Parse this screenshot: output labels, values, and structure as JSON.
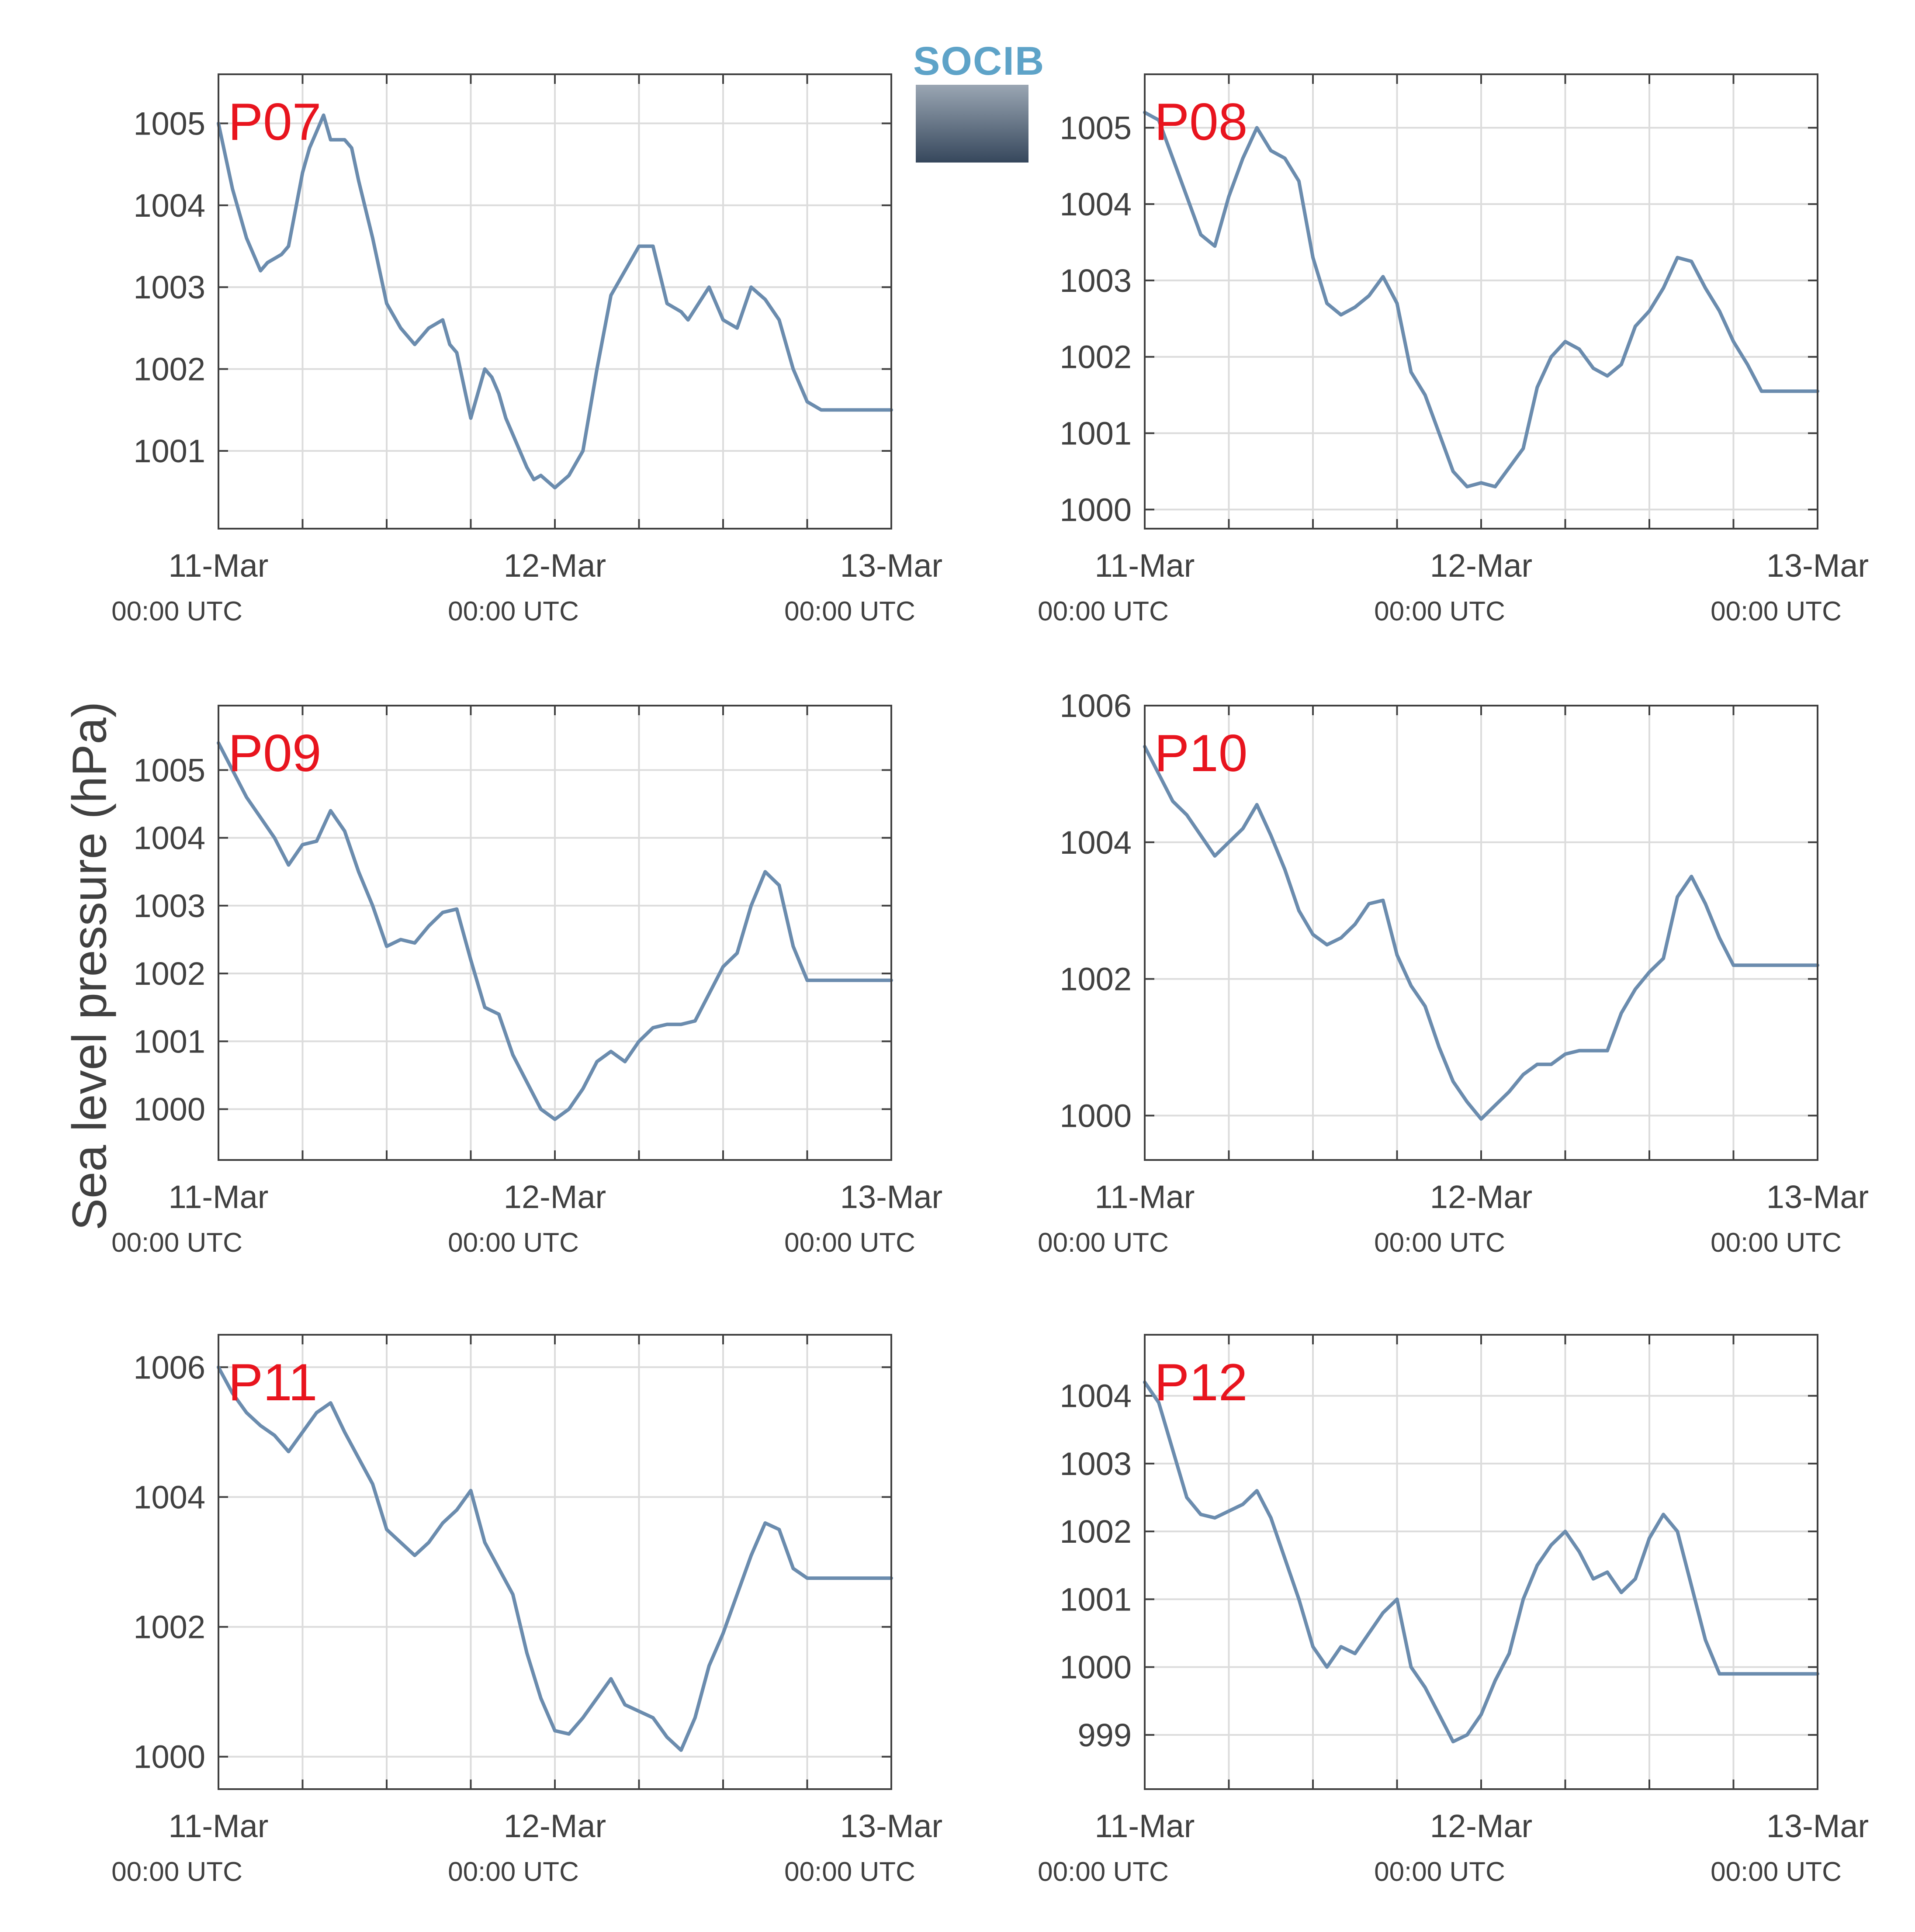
{
  "figure": {
    "ylabel": "Sea level pressure (hPa)",
    "logo_text": "SOCIB",
    "colors": {
      "line": "#6b8cae",
      "panel_label": "#e8141e",
      "axis": "#404040",
      "grid": "#dcdcdc"
    }
  },
  "chart_data": [
    {
      "type": "line",
      "label": "P07",
      "x_tick_labels": [
        [
          "11-Mar",
          "00:00 UTC"
        ],
        [
          "12-Mar",
          "00:00 UTC"
        ],
        [
          "13-Mar",
          "00:00 UTC"
        ]
      ],
      "xlim": [
        0,
        48
      ],
      "ylim": [
        1000.05,
        1005.6
      ],
      "y_ticks": [
        1001,
        1002,
        1003,
        1004,
        1005
      ],
      "series": [
        {
          "x": [
            0,
            1,
            2,
            3,
            3.5,
            4.5,
            5,
            6,
            6.5,
            7,
            7.5,
            8,
            9,
            9.5,
            10,
            11,
            12,
            13,
            14,
            15,
            16,
            16.5,
            17,
            18,
            19,
            19.5,
            20,
            20.5,
            21,
            22,
            22.5,
            23,
            24,
            25,
            26,
            27,
            28,
            29,
            30,
            31,
            32,
            33,
            33.5,
            35,
            36,
            37,
            38,
            39,
            40,
            41,
            42,
            43,
            44,
            45,
            46,
            47,
            48
          ],
          "y": [
            1005.0,
            1004.2,
            1003.6,
            1003.2,
            1003.3,
            1003.4,
            1003.5,
            1004.4,
            1004.7,
            1004.9,
            1005.1,
            1004.8,
            1004.8,
            1004.7,
            1004.3,
            1003.6,
            1002.8,
            1002.5,
            1002.3,
            1002.5,
            1002.6,
            1002.3,
            1002.2,
            1001.4,
            1002.0,
            1001.9,
            1001.7,
            1001.4,
            1001.2,
            1000.8,
            1000.65,
            1000.7,
            1000.55,
            1000.7,
            1001.0,
            1002.0,
            1002.9,
            1003.2,
            1003.5,
            1003.5,
            1002.8,
            1002.7,
            1002.6,
            1003.0,
            1002.6,
            1002.5,
            1003.0,
            1002.85,
            1002.6,
            1002.0,
            1001.6,
            1001.5,
            1001.5,
            1001.5,
            1001.5,
            1001.5,
            1001.5
          ]
        }
      ]
    },
    {
      "type": "line",
      "label": "P08",
      "x_tick_labels": [
        [
          "11-Mar",
          "00:00 UTC"
        ],
        [
          "12-Mar",
          "00:00 UTC"
        ],
        [
          "13-Mar",
          "00:00 UTC"
        ]
      ],
      "xlim": [
        0,
        48
      ],
      "ylim": [
        999.75,
        1005.7
      ],
      "y_ticks": [
        1000,
        1001,
        1002,
        1003,
        1004,
        1005
      ],
      "series": [
        {
          "x": [
            0,
            1,
            2,
            3,
            4,
            5,
            6,
            7,
            8,
            9,
            10,
            11,
            12,
            13,
            14,
            15,
            16,
            17,
            18,
            19,
            20,
            21,
            22,
            23,
            24,
            25,
            26,
            27,
            28,
            29,
            30,
            31,
            32,
            33,
            34,
            35,
            36,
            37,
            38,
            39,
            40,
            41,
            42,
            43,
            44,
            45,
            46,
            47,
            48
          ],
          "y": [
            1005.2,
            1005.1,
            1004.6,
            1004.1,
            1003.6,
            1003.45,
            1004.1,
            1004.6,
            1005.0,
            1004.7,
            1004.6,
            1004.3,
            1003.3,
            1002.7,
            1002.55,
            1002.65,
            1002.8,
            1003.05,
            1002.7,
            1001.8,
            1001.5,
            1001.0,
            1000.5,
            1000.3,
            1000.35,
            1000.3,
            1000.55,
            1000.8,
            1001.6,
            1002.0,
            1002.2,
            1002.1,
            1001.85,
            1001.75,
            1001.9,
            1002.4,
            1002.6,
            1002.9,
            1003.3,
            1003.25,
            1002.9,
            1002.6,
            1002.2,
            1001.9,
            1001.55,
            1001.55,
            1001.55,
            1001.55,
            1001.55
          ]
        }
      ]
    },
    {
      "type": "line",
      "label": "P09",
      "x_tick_labels": [
        [
          "11-Mar",
          "00:00 UTC"
        ],
        [
          "12-Mar",
          "00:00 UTC"
        ],
        [
          "13-Mar",
          "00:00 UTC"
        ]
      ],
      "xlim": [
        0,
        48
      ],
      "ylim": [
        999.25,
        1005.95
      ],
      "y_ticks": [
        1000,
        1001,
        1002,
        1003,
        1004,
        1005
      ],
      "series": [
        {
          "x": [
            0,
            1,
            2,
            3,
            4,
            5,
            6,
            7,
            8,
            9,
            10,
            11,
            12,
            13,
            14,
            15,
            16,
            17,
            18,
            19,
            20,
            21,
            22,
            23,
            24,
            25,
            26,
            27,
            28,
            29,
            30,
            31,
            32,
            33,
            34,
            35,
            36,
            37,
            38,
            39,
            40,
            41,
            42,
            43,
            44,
            45,
            46,
            47,
            48
          ],
          "y": [
            1005.4,
            1005.0,
            1004.6,
            1004.3,
            1004.0,
            1003.6,
            1003.9,
            1003.95,
            1004.4,
            1004.1,
            1003.5,
            1003.0,
            1002.4,
            1002.5,
            1002.45,
            1002.7,
            1002.9,
            1002.95,
            1002.2,
            1001.5,
            1001.4,
            1000.8,
            1000.4,
            1000.0,
            999.85,
            1000.0,
            1000.3,
            1000.7,
            1000.85,
            1000.7,
            1001.0,
            1001.2,
            1001.25,
            1001.25,
            1001.3,
            1001.7,
            1002.1,
            1002.3,
            1003.0,
            1003.5,
            1003.3,
            1002.4,
            1001.9,
            1001.9,
            1001.9,
            1001.9,
            1001.9,
            1001.9,
            1001.9
          ]
        }
      ]
    },
    {
      "type": "line",
      "label": "P10",
      "x_tick_labels": [
        [
          "11-Mar",
          "00:00 UTC"
        ],
        [
          "12-Mar",
          "00:00 UTC"
        ],
        [
          "13-Mar",
          "00:00 UTC"
        ]
      ],
      "xlim": [
        0,
        48
      ],
      "ylim": [
        999.35,
        1006.0
      ],
      "y_ticks": [
        1000,
        1002,
        1004,
        1006
      ],
      "series": [
        {
          "x": [
            0,
            1,
            2,
            3,
            4,
            5,
            6,
            7,
            8,
            9,
            10,
            11,
            12,
            13,
            14,
            15,
            16,
            17,
            18,
            19,
            20,
            21,
            22,
            23,
            24,
            25,
            26,
            27,
            28,
            29,
            30,
            31,
            32,
            33,
            34,
            35,
            36,
            37,
            38,
            39,
            40,
            41,
            42,
            43,
            44,
            45,
            46,
            47,
            48
          ],
          "y": [
            1005.4,
            1005.0,
            1004.6,
            1004.4,
            1004.1,
            1003.8,
            1004.0,
            1004.2,
            1004.55,
            1004.1,
            1003.6,
            1003.0,
            1002.65,
            1002.5,
            1002.6,
            1002.8,
            1003.1,
            1003.15,
            1002.35,
            1001.9,
            1001.6,
            1001.0,
            1000.5,
            1000.2,
            999.95,
            1000.15,
            1000.35,
            1000.6,
            1000.75,
            1000.75,
            1000.9,
            1000.95,
            1000.95,
            1000.95,
            1001.5,
            1001.85,
            1002.1,
            1002.3,
            1003.2,
            1003.5,
            1003.1,
            1002.6,
            1002.2,
            1002.2,
            1002.2,
            1002.2,
            1002.2,
            1002.2,
            1002.2
          ]
        }
      ]
    },
    {
      "type": "line",
      "label": "P11",
      "x_tick_labels": [
        [
          "11-Mar",
          "00:00 UTC"
        ],
        [
          "12-Mar",
          "00:00 UTC"
        ],
        [
          "13-Mar",
          "00:00 UTC"
        ]
      ],
      "xlim": [
        0,
        48
      ],
      "ylim": [
        999.5,
        1006.5
      ],
      "y_ticks": [
        1000,
        1002,
        1004,
        1006
      ],
      "series": [
        {
          "x": [
            0,
            1,
            2,
            3,
            4,
            5,
            6,
            7,
            8,
            9,
            10,
            11,
            12,
            13,
            14,
            15,
            16,
            17,
            18,
            19,
            20,
            21,
            22,
            23,
            24,
            25,
            26,
            27,
            28,
            29,
            30,
            31,
            32,
            33,
            34,
            35,
            36,
            37,
            38,
            39,
            40,
            41,
            42,
            43,
            44,
            45,
            46,
            47,
            48
          ],
          "y": [
            1006.0,
            1005.6,
            1005.3,
            1005.1,
            1004.95,
            1004.7,
            1005.0,
            1005.3,
            1005.45,
            1005.0,
            1004.6,
            1004.2,
            1003.5,
            1003.3,
            1003.1,
            1003.3,
            1003.6,
            1003.8,
            1004.1,
            1003.3,
            1002.9,
            1002.5,
            1001.6,
            1000.9,
            1000.4,
            1000.35,
            1000.6,
            1000.9,
            1001.2,
            1000.8,
            1000.7,
            1000.6,
            1000.3,
            1000.1,
            1000.6,
            1001.4,
            1001.9,
            1002.5,
            1003.1,
            1003.6,
            1003.5,
            1002.9,
            1002.75,
            1002.75,
            1002.75,
            1002.75,
            1002.75,
            1002.75,
            1002.75
          ]
        }
      ]
    },
    {
      "type": "line",
      "label": "P12",
      "x_tick_labels": [
        [
          "11-Mar",
          "00:00 UTC"
        ],
        [
          "12-Mar",
          "00:00 UTC"
        ],
        [
          "13-Mar",
          "00:00 UTC"
        ]
      ],
      "xlim": [
        0,
        48
      ],
      "ylim": [
        998.2,
        1004.9
      ],
      "y_ticks": [
        999,
        1000,
        1001,
        1002,
        1003,
        1004
      ],
      "series": [
        {
          "x": [
            0,
            1,
            2,
            3,
            4,
            5,
            6,
            7,
            8,
            9,
            10,
            11,
            12,
            13,
            14,
            15,
            16,
            17,
            18,
            19,
            20,
            21,
            22,
            23,
            24,
            25,
            26,
            27,
            28,
            29,
            30,
            31,
            32,
            33,
            34,
            35,
            36,
            37,
            38,
            39,
            40,
            41,
            42,
            43,
            44,
            45,
            46,
            47,
            48
          ],
          "y": [
            1004.2,
            1003.9,
            1003.2,
            1002.5,
            1002.25,
            1002.2,
            1002.3,
            1002.4,
            1002.6,
            1002.2,
            1001.6,
            1001.0,
            1000.3,
            1000.0,
            1000.3,
            1000.2,
            1000.5,
            1000.8,
            1001.0,
            1000.0,
            999.7,
            999.3,
            998.9,
            999.0,
            999.3,
            999.8,
            1000.2,
            1001.0,
            1001.5,
            1001.8,
            1002.0,
            1001.7,
            1001.3,
            1001.4,
            1001.1,
            1001.3,
            1001.9,
            1002.25,
            1002.0,
            1001.2,
            1000.4,
            999.9,
            999.9,
            999.9,
            999.9,
            999.9,
            999.9,
            999.9,
            999.9
          ]
        }
      ]
    }
  ]
}
